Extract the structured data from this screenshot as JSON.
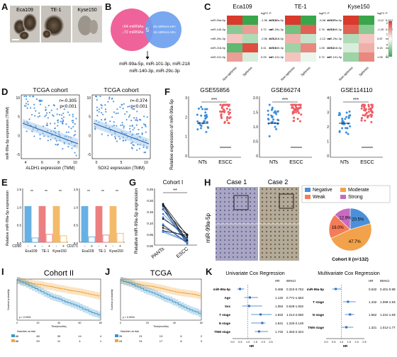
{
  "panels": {
    "A": {
      "label": "A",
      "cell_lines": [
        "Eca109",
        "TE-1",
        "Kyse150"
      ]
    },
    "B": {
      "label": "B",
      "left_lines": [
        "↑64 miRNAs",
        "↓72 miRNAs"
      ],
      "center": "5",
      "right_lines": [
        "25 miRNAs HR↑",
        "15 miRNAs HR↓"
      ],
      "caption1": "miR-99a-5p, miR-101-3p, miR-218",
      "caption2": "miR-140-3p, miR-29c-3p",
      "colors": {
        "left": "#f0639a",
        "right": "#6a9ff0"
      }
    },
    "C": {
      "label": "C",
      "groups": [
        {
          "title": "Eca109",
          "rows": [
            "miR-99a-5p",
            "miR-140-3p",
            "miR-29c-3p",
            "miR-218-5p",
            "miR-101-3p"
          ],
          "logFC": [
            "-1.96",
            "0.72",
            "-2.56",
            "3.41",
            "0.09"
          ],
          "p": [
            "0.016",
            "ns",
            "0.012",
            "0.009",
            "ns"
          ],
          "cells": [
            [
              1,
              -1
            ],
            [
              -0.6,
              0.5
            ],
            [
              0.3,
              -0.4
            ],
            [
              -0.8,
              0.9
            ],
            [
              0.5,
              -0.2
            ]
          ]
        },
        {
          "title": "TE-1",
          "rows": [
            "miR-99a-5p",
            "miR-29c-3p",
            "miR-218-5p",
            "miR-140-3p",
            "miR-101-3p"
          ],
          "logFC": [
            "-6.98",
            "2.76",
            "-1.12",
            "1.05",
            "0.72"
          ],
          "p": [
            "0.007",
            "0.029",
            "ns",
            "0.001",
            "ns"
          ],
          "cells": [
            [
              1,
              -1
            ],
            [
              -0.7,
              0.8
            ],
            [
              0.4,
              -0.3
            ],
            [
              -0.5,
              0.6
            ],
            [
              0.3,
              -0.1
            ]
          ]
        },
        {
          "title": "Kyse150",
          "rows": [
            "miR-99a-5p",
            "miR-140-3p",
            "miR-29c-3p",
            "miR-218-5p",
            "miR-101-3p"
          ],
          "logFC": [
            "-3.12",
            "-1.29",
            "0.87",
            "0.15",
            "1.05"
          ],
          "p": [
            "0.012",
            "0.032",
            "ns",
            "ns",
            "ns"
          ],
          "cells": [
            [
              1,
              -1
            ],
            [
              0.8,
              -0.6
            ],
            [
              -0.4,
              0.3
            ],
            [
              -0.2,
              0.4
            ],
            [
              -0.5,
              0.6
            ]
          ]
        }
      ],
      "header_logfc": "logFC",
      "header_p": "P",
      "xlabels": [
        "Non-spheres",
        "Spheres"
      ],
      "colorbar": {
        "ticks": [
          "2",
          "1",
          "0",
          "-1"
        ],
        "colors": [
          "#d93a2b",
          "#ffffff",
          "#3aa64c"
        ]
      }
    },
    "D": {
      "label": "D",
      "plots": [
        {
          "title": "TCGA cohort",
          "r": "r=-0.305",
          "p": "p<0.001",
          "xlabel": "ALDH1 expression (TMM)",
          "xticks": [
            "4",
            "6",
            "8",
            "10"
          ],
          "yticks": [
            "10",
            "5",
            "0",
            "-5"
          ]
        },
        {
          "title": "TCGA cohort",
          "r": "r=-0.374",
          "p": "p<0.001",
          "xlabel": "SOX2 expression (TMM)",
          "xticks": [
            "0",
            "5",
            "10"
          ],
          "yticks": [
            "10",
            "5",
            "0",
            "-5"
          ]
        }
      ],
      "ylabel": "miR-99a-5p expression (TMM)"
    },
    "E": {
      "label": "E",
      "ylabel": "Relative miR-99a-5p expression",
      "plots": [
        {
          "marker": "CD90",
          "sig": [
            "**",
            "**",
            "**"
          ],
          "groups": [
            "Eca109",
            "TE-1",
            "Kyse150"
          ],
          "signs": [
            "-",
            "+",
            "-",
            "+",
            "-",
            "+"
          ],
          "values": [
            1.0,
            0.12,
            1.0,
            0.22,
            1.0,
            0.18
          ],
          "colors": [
            "#4da3e0",
            "#e96a6a",
            "#f2b04f"
          ],
          "yticks": [
            "1.5",
            "1.0",
            "0.5",
            "0.0"
          ]
        },
        {
          "marker": "CD271",
          "sig": [
            "**",
            "**",
            "**"
          ],
          "groups": [
            "Eca109",
            "TE-1",
            "Kyse150"
          ],
          "signs": [
            "-",
            "+",
            "-",
            "+",
            "-",
            "+"
          ],
          "values": [
            1.0,
            0.15,
            1.0,
            0.2,
            1.0,
            0.25
          ],
          "colors": [
            "#4da3e0",
            "#e96a6a",
            "#f2b04f"
          ],
          "yticks": [
            "1.5",
            "1.0",
            "0.5",
            "0.0"
          ]
        }
      ]
    },
    "F": {
      "label": "F",
      "ylabel": "Relative expression of miR-99a-5p",
      "sig": "***",
      "plots": [
        {
          "title": "GSE55856",
          "groups": [
            "NTs",
            "ESCC"
          ],
          "yticks": [
            "3",
            "2",
            "1",
            "0"
          ]
        },
        {
          "title": "GSE66274",
          "groups": [
            "NTs",
            "ESCC"
          ],
          "yticks": [
            "2.0",
            "1.5",
            "1.0",
            "0.5",
            "0"
          ]
        },
        {
          "title": "GSE114110",
          "groups": [
            "NTs",
            "ESCC"
          ],
          "yticks": [
            "4",
            "3",
            "2",
            "1",
            "0"
          ]
        }
      ],
      "colors": [
        "#3d8fdc",
        "#ef5b62"
      ]
    },
    "G": {
      "label": "G",
      "title": "Cohort I",
      "sig": "**",
      "ylabel": "Relative miR-99a-5p expression",
      "xlabels": [
        "PANTs",
        "ESCC"
      ],
      "yticks": [
        "0.25",
        "0.20",
        "0.15",
        "0.10",
        "0.05",
        "0.00"
      ]
    },
    "H": {
      "label": "H",
      "case1": "Case 1",
      "case2": "Case 2",
      "stain": "miR-99a-5p",
      "legend": [
        "Negative",
        "Moderate",
        "Weak",
        "Strong"
      ],
      "pie": {
        "values": [
          20.5,
          47.7,
          19.0,
          12.9
        ],
        "labels": [
          "20.5%",
          "47.7%",
          "19.0%",
          "12.9%"
        ],
        "colors": [
          "#4a90d9",
          "#f2a24a",
          "#f57c56",
          "#c86ac0"
        ]
      },
      "caption": "Cohort II (n=132)"
    },
    "I": {
      "label": "I",
      "title": "Cohort II",
      "ylabel": "Survival probability",
      "xlabel": "Time(months)",
      "pval": "p < 0.0001",
      "risk_header": "Number at risk",
      "risk_rows": [
        [
          "66",
          "48",
          "30",
          "14",
          "4"
        ],
        [
          "66",
          "29",
          "11",
          "4",
          "1"
        ]
      ],
      "xticks": [
        "0",
        "20",
        "40",
        "60",
        "80"
      ]
    },
    "J": {
      "label": "J",
      "title": "TCGA",
      "ylabel": "Survival probability",
      "xlabel": "Time(months)",
      "pval": "p = 0.0034",
      "risk_header": "Number at risk",
      "risk_rows": [
        [
          "35",
          "21",
          "13",
          "6",
          "2"
        ],
        [
          "43",
          "31",
          "17",
          "8",
          "3"
        ]
      ],
      "xticks": [
        "0",
        "20",
        "40",
        "60"
      ]
    },
    "K": {
      "label": "K",
      "uni": {
        "title": "Univariate Cox Regression",
        "hdr_hr": "HR",
        "hdr_ci": "95%CI",
        "rows": [
          [
            "miR-99a-5p",
            "0.486",
            "0.310-0.763"
          ],
          [
            "Age",
            "1.132",
            "0.771-1.663"
          ],
          [
            "Sex",
            "1.084",
            "0.629-1.932"
          ],
          [
            "T stage",
            "1.832",
            "1.214-2.560"
          ],
          [
            "N stage",
            "1.941",
            "1.220-2.149"
          ],
          [
            "TNM stage",
            "1.732",
            "1.453-2.324"
          ]
        ],
        "hr": [
          0.486,
          1.132,
          1.084,
          1.832,
          1.941,
          1.732
        ],
        "lo": [
          0.31,
          0.771,
          0.629,
          1.214,
          1.22,
          1.453
        ],
        "hi": [
          0.763,
          1.663,
          1.932,
          2.56,
          2.149,
          2.324
        ],
        "xticks": [
          "0.0",
          "0.5",
          "1.0",
          "1.5",
          "2.0",
          "2.5"
        ],
        "xlabel": "HR"
      },
      "multi": {
        "title": "Multivariate Cox Regression",
        "hdr_hr": "HR",
        "hdr_ci": "95%CI",
        "rows": [
          [
            "miR-99a-5p",
            "0.632",
            "0.401-0.993"
          ],
          [
            "T stage",
            "1.432",
            "1.099-1.932"
          ],
          [
            "N stage",
            "1.562",
            "1.231-1.839"
          ],
          [
            "TNM stage",
            "1.321",
            "1.012-1.773"
          ]
        ],
        "hr": [
          0.632,
          1.432,
          1.562,
          1.321
        ],
        "lo": [
          0.401,
          1.099,
          1.231,
          1.012
        ],
        "hi": [
          0.993,
          1.932,
          1.839,
          1.773
        ],
        "xticks": [
          "0.0",
          "0.5",
          "1.0",
          "1.5",
          "2.0",
          "2.5"
        ],
        "xlabel": "HR"
      }
    }
  }
}
